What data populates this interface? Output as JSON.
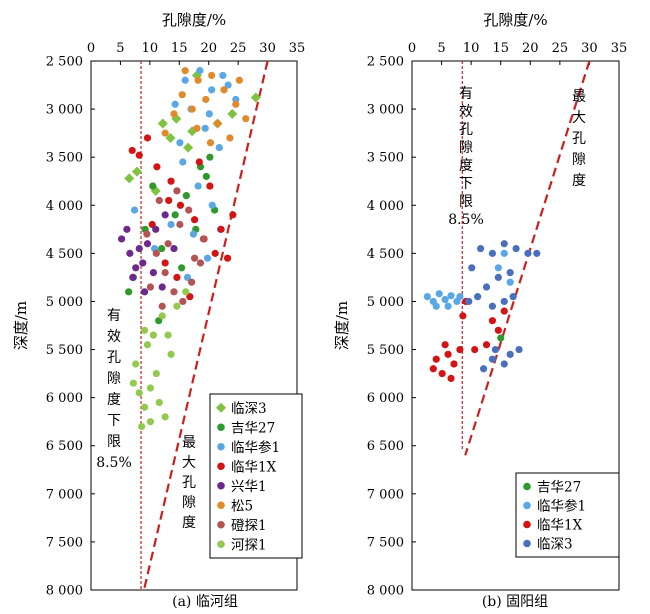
{
  "chart_data": [
    {
      "panel": "a",
      "type": "scatter",
      "caption": "(a) 临河组",
      "xlabel": "孔隙度/%",
      "ylabel": "深度/m",
      "xlim": [
        0,
        35
      ],
      "ylim": [
        2500,
        8000
      ],
      "y_inverted": true,
      "x_axis_position": "top",
      "grid": false,
      "legend_position": "bottom-right",
      "x_ticks": [
        "0",
        "5",
        "10",
        "15",
        "20",
        "25",
        "30",
        "35"
      ],
      "y_ticks": [
        "2 500",
        "3 000",
        "3 500",
        "4 000",
        "4 500",
        "5 000",
        "5 500",
        "6 000",
        "6 500",
        "7 000",
        "7 500",
        "8 000"
      ],
      "cutoff_line": {
        "x": 8.5,
        "label": [
          "有",
          "效",
          "孔",
          "隙",
          "度",
          "下",
          "限",
          "8.5%"
        ],
        "color": "#cc1f1f"
      },
      "max_line": {
        "points": [
          [
            30,
            2500
          ],
          [
            9,
            8000
          ]
        ],
        "label": [
          "最",
          "大",
          "孔",
          "隙",
          "度"
        ],
        "color": "#cc1f1f"
      },
      "series": [
        {
          "name": "临深3",
          "color": "#7ec242",
          "marker": "diamond",
          "points": [
            [
              6.5,
              3720
            ],
            [
              7.8,
              3650
            ],
            [
              11,
              3850
            ],
            [
              12.2,
              3150
            ],
            [
              13.5,
              3300
            ],
            [
              14.5,
              3100
            ],
            [
              17.2,
              3230
            ],
            [
              21.5,
              3150
            ],
            [
              24,
              3050
            ],
            [
              28,
              2880
            ],
            [
              18,
              2650
            ],
            [
              16.5,
              3400
            ]
          ]
        },
        {
          "name": "吉华27",
          "color": "#2e9a2e",
          "marker": "circle",
          "points": [
            [
              6.4,
              4900
            ],
            [
              7.2,
              4750
            ],
            [
              10.5,
              3800
            ],
            [
              12,
              4450
            ],
            [
              14.3,
              4100
            ],
            [
              16.2,
              3900
            ],
            [
              17.8,
              4250
            ],
            [
              19.6,
              3700
            ],
            [
              21,
              4050
            ],
            [
              11.5,
              5200
            ],
            [
              15.4,
              4650
            ],
            [
              18.6,
              3600
            ],
            [
              20.2,
              3500
            ],
            [
              9.2,
              4250
            ]
          ]
        },
        {
          "name": "临华参1",
          "color": "#5aa7e6",
          "marker": "circle",
          "points": [
            [
              16,
              2700
            ],
            [
              18.5,
              2600
            ],
            [
              20.5,
              2800
            ],
            [
              22.4,
              2650
            ],
            [
              24.6,
              2900
            ],
            [
              17,
              3000
            ],
            [
              19.4,
              3200
            ],
            [
              21.8,
              3400
            ],
            [
              15.6,
              3550
            ],
            [
              18.2,
              3800
            ],
            [
              20.6,
              4000
            ],
            [
              17.4,
              4300
            ],
            [
              19.8,
              4550
            ],
            [
              22,
              4250
            ],
            [
              16.4,
              4750
            ],
            [
              7.4,
              4050
            ],
            [
              13.6,
              4200
            ],
            [
              10.8,
              4450
            ],
            [
              15.1,
              3350
            ],
            [
              14.3,
              2950
            ],
            [
              23.3,
              2750
            ],
            [
              20.1,
              3050
            ]
          ]
        },
        {
          "name": "临华1X",
          "color": "#d31414",
          "marker": "circle",
          "points": [
            [
              7,
              3430
            ],
            [
              8.2,
              3480
            ],
            [
              9.6,
              3300
            ],
            [
              11.2,
              3600
            ],
            [
              13.6,
              3750
            ],
            [
              15.2,
              4000
            ],
            [
              17.6,
              4150
            ],
            [
              19.2,
              4350
            ],
            [
              21.1,
              4500
            ],
            [
              23.2,
              4550
            ],
            [
              14.6,
              4750
            ],
            [
              16.8,
              4950
            ],
            [
              12.6,
              4600
            ],
            [
              10.4,
              4200
            ],
            [
              22.1,
              4250
            ],
            [
              20.2,
              3800
            ],
            [
              18.4,
              3550
            ],
            [
              24.1,
              4100
            ],
            [
              13.2,
              3950
            ]
          ]
        },
        {
          "name": "兴华1",
          "color": "#6b2a8c",
          "marker": "circle",
          "points": [
            [
              5.2,
              4350
            ],
            [
              6.6,
              4500
            ],
            [
              7.6,
              4650
            ],
            [
              8.8,
              4600
            ],
            [
              9.6,
              4400
            ],
            [
              11,
              4250
            ],
            [
              12.6,
              4100
            ],
            [
              6.1,
              4250
            ],
            [
              8.2,
              4450
            ],
            [
              10.6,
              4700
            ],
            [
              14.1,
              4450
            ],
            [
              12.1,
              4850
            ],
            [
              7.1,
              4750
            ],
            [
              9.1,
              4900
            ]
          ]
        },
        {
          "name": "松5",
          "color": "#e08a2c",
          "marker": "circle",
          "points": [
            [
              16,
              2600
            ],
            [
              18.2,
              2700
            ],
            [
              20.5,
              2650
            ],
            [
              22.6,
              2800
            ],
            [
              24.6,
              2950
            ],
            [
              26.3,
              3100
            ],
            [
              17.2,
              3000
            ],
            [
              19.5,
              2900
            ],
            [
              21.5,
              3150
            ],
            [
              23.6,
              3300
            ],
            [
              15.5,
              2850
            ],
            [
              14.1,
              3050
            ],
            [
              12.6,
              3250
            ],
            [
              25.2,
              2700
            ],
            [
              20.3,
              3350
            ],
            [
              18,
              3200
            ]
          ]
        },
        {
          "name": "磴探1",
          "color": "#b35454",
          "marker": "circle",
          "points": [
            [
              9.5,
              4300
            ],
            [
              11.1,
              4500
            ],
            [
              12.6,
              4700
            ],
            [
              14.1,
              4900
            ],
            [
              15.6,
              5000
            ],
            [
              17.1,
              4800
            ],
            [
              18.6,
              4600
            ],
            [
              13.1,
              4400
            ],
            [
              15.1,
              4200
            ],
            [
              16.6,
              4050
            ],
            [
              10.1,
              4850
            ],
            [
              12.1,
              5050
            ],
            [
              19.1,
              4350
            ],
            [
              14.6,
              3850
            ],
            [
              11.6,
              3950
            ],
            [
              17.6,
              4550
            ]
          ]
        },
        {
          "name": "河探1",
          "color": "#93c94f",
          "marker": "circle",
          "points": [
            [
              7.2,
              5850
            ],
            [
              8.2,
              5950
            ],
            [
              9.1,
              6100
            ],
            [
              10.1,
              6250
            ],
            [
              11.6,
              6050
            ],
            [
              7.6,
              5650
            ],
            [
              9.6,
              5450
            ],
            [
              10.6,
              5350
            ],
            [
              12.1,
              5150
            ],
            [
              13.6,
              5550
            ],
            [
              8.6,
              6300
            ],
            [
              14.6,
              5050
            ],
            [
              11.1,
              5750
            ],
            [
              16.1,
              4900
            ],
            [
              10.1,
              5900
            ],
            [
              12.6,
              6200
            ],
            [
              9.1,
              5300
            ],
            [
              13.1,
              5350
            ]
          ]
        }
      ]
    },
    {
      "panel": "b",
      "type": "scatter",
      "caption": "(b) 固阳组",
      "xlabel": "孔隙度/%",
      "ylabel": "深度/m",
      "xlim": [
        0,
        35
      ],
      "ylim": [
        2500,
        8000
      ],
      "y_inverted": true,
      "x_axis_position": "top",
      "grid": false,
      "legend_position": "bottom-right",
      "x_ticks": [
        "0",
        "5",
        "10",
        "15",
        "20",
        "25",
        "30",
        "35"
      ],
      "y_ticks": [
        "2 500",
        "3 000",
        "3 500",
        "4 000",
        "4 500",
        "5 000",
        "5 500",
        "6 000",
        "6 500",
        "7 000",
        "7 500",
        "8 000"
      ],
      "cutoff_line": {
        "x": 8.5,
        "label": [
          "有",
          "效",
          "孔",
          "隙",
          "度",
          "下",
          "限",
          "8.5%"
        ],
        "color": "#cc1f1f"
      },
      "max_line": {
        "points": [
          [
            30,
            2500
          ],
          [
            9,
            6600
          ]
        ],
        "label": [
          "最",
          "大",
          "孔",
          "隙",
          "度"
        ],
        "color": "#cc1f1f"
      },
      "series": [
        {
          "name": "吉华27",
          "color": "#2e9a2e",
          "marker": "circle",
          "points": [
            [
              15,
              5380
            ]
          ]
        },
        {
          "name": "临华参1",
          "color": "#5aa7e6",
          "marker": "circle",
          "points": [
            [
              2.6,
              4950
            ],
            [
              3.6,
              5000
            ],
            [
              4.6,
              4920
            ],
            [
              5.6,
              4980
            ],
            [
              6.6,
              4940
            ],
            [
              7.6,
              5000
            ],
            [
              8.1,
              4950
            ],
            [
              4.1,
              5050
            ],
            [
              6.1,
              5050
            ],
            [
              15.6,
              4500
            ],
            [
              14.6,
              4650
            ],
            [
              16.6,
              4800
            ]
          ]
        },
        {
          "name": "临华1X",
          "color": "#d31414",
          "marker": "circle",
          "points": [
            [
              4.1,
              5600
            ],
            [
              5.1,
              5750
            ],
            [
              6.1,
              5550
            ],
            [
              7.1,
              5650
            ],
            [
              8.1,
              5500
            ],
            [
              3.6,
              5700
            ],
            [
              5.6,
              5450
            ],
            [
              6.6,
              5800
            ],
            [
              9.1,
              5000
            ],
            [
              8.6,
              5150
            ],
            [
              13.6,
              5200
            ],
            [
              15.6,
              5100
            ],
            [
              12.6,
              5450
            ],
            [
              10.6,
              5500
            ],
            [
              14.6,
              5300
            ]
          ]
        },
        {
          "name": "临深3",
          "color": "#4a6fbd",
          "marker": "circle",
          "points": [
            [
              10.1,
              4650
            ],
            [
              11.6,
              4450
            ],
            [
              13.6,
              4500
            ],
            [
              15.6,
              4400
            ],
            [
              17.6,
              4450
            ],
            [
              19.6,
              4500
            ],
            [
              21.1,
              4500
            ],
            [
              12.6,
              4850
            ],
            [
              14.6,
              4750
            ],
            [
              16.6,
              4700
            ],
            [
              11.1,
              4950
            ],
            [
              9.6,
              5000
            ],
            [
              13.6,
              5050
            ],
            [
              15.6,
              5000
            ],
            [
              17.1,
              4950
            ],
            [
              14.1,
              5500
            ],
            [
              15.6,
              5650
            ],
            [
              13.6,
              5600
            ],
            [
              16.6,
              5550
            ],
            [
              18.1,
              5500
            ],
            [
              12.1,
              5700
            ]
          ]
        }
      ]
    }
  ]
}
